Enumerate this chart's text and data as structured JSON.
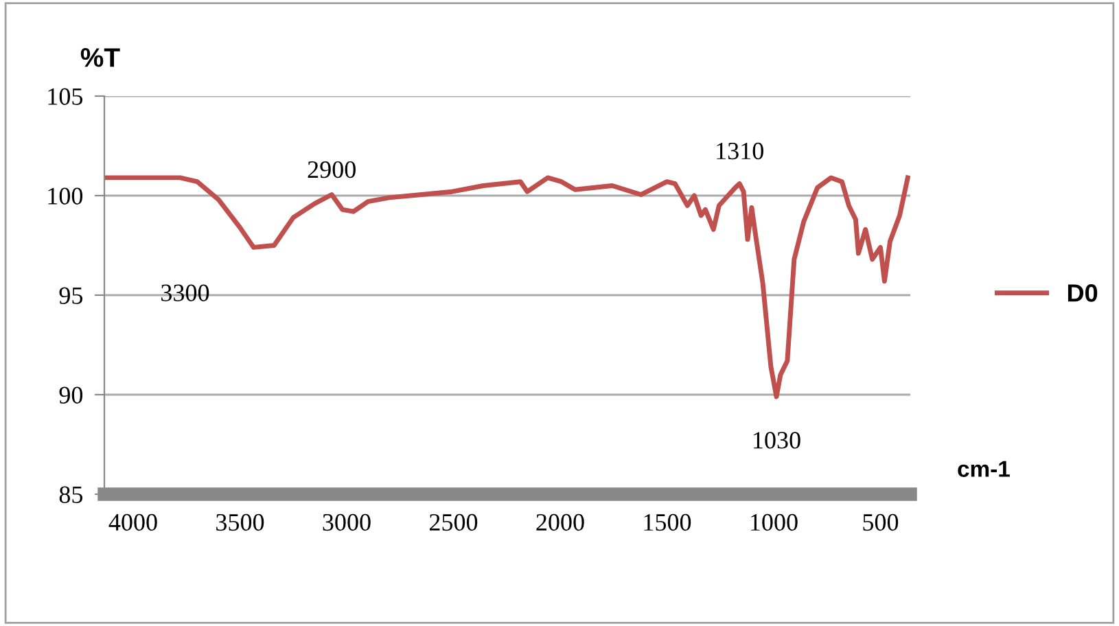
{
  "chart_data": {
    "type": "line",
    "ylabel": "%T",
    "xlabel": "cm-1",
    "x": [
      4130,
      3780,
      3700,
      3600,
      3500,
      3436,
      3340,
      3250,
      3150,
      3070,
      3020,
      2968,
      2900,
      2800,
      2700,
      2506,
      2359,
      2186,
      2154,
      2058,
      1994,
      1930,
      1756,
      1622,
      1500,
      1462,
      1404,
      1372,
      1340,
      1320,
      1282,
      1256,
      1180,
      1160,
      1141,
      1122,
      1103,
      1083,
      1051,
      1013,
      987,
      968,
      936,
      904,
      859,
      795,
      731,
      680,
      648,
      616,
      603,
      570,
      538,
      500,
      481,
      455,
      410,
      372
    ],
    "series": [
      {
        "name": "D0",
        "color": "#c0504d",
        "values": [
          100.9,
          100.9,
          100.7,
          99.8,
          98.4,
          97.4,
          97.5,
          98.9,
          99.6,
          100.05,
          99.3,
          99.2,
          99.7,
          99.9,
          100.0,
          100.2,
          100.5,
          100.7,
          100.2,
          100.9,
          100.7,
          100.3,
          100.5,
          100.05,
          100.7,
          100.6,
          99.5,
          100.0,
          99.0,
          99.3,
          98.3,
          99.5,
          100.4,
          100.6,
          100.2,
          97.8,
          99.4,
          97.9,
          95.6,
          91.4,
          89.9,
          91.0,
          91.7,
          96.8,
          98.7,
          100.4,
          100.9,
          100.7,
          99.5,
          98.8,
          97.1,
          98.3,
          96.8,
          97.4,
          95.7,
          97.7,
          99.0,
          100.9
        ]
      }
    ],
    "xlim": [
      4135,
      360
    ],
    "xticks": [
      4000,
      3500,
      3000,
      2500,
      2000,
      1500,
      1000,
      500
    ],
    "ylim": [
      85,
      105
    ],
    "yticks": [
      85,
      90,
      95,
      100,
      105
    ],
    "grid": "y",
    "legend": "right",
    "marker": "none",
    "line_style": "solid",
    "annotations": [
      {
        "text": "3300",
        "x": 3400,
        "y": 97.4
      },
      {
        "text": "2900",
        "x": 3070,
        "y": 100.05
      },
      {
        "text": "1310",
        "x": 1160,
        "y": 100.6
      },
      {
        "text": "1030",
        "x": 987,
        "y": 89.9
      }
    ]
  }
}
